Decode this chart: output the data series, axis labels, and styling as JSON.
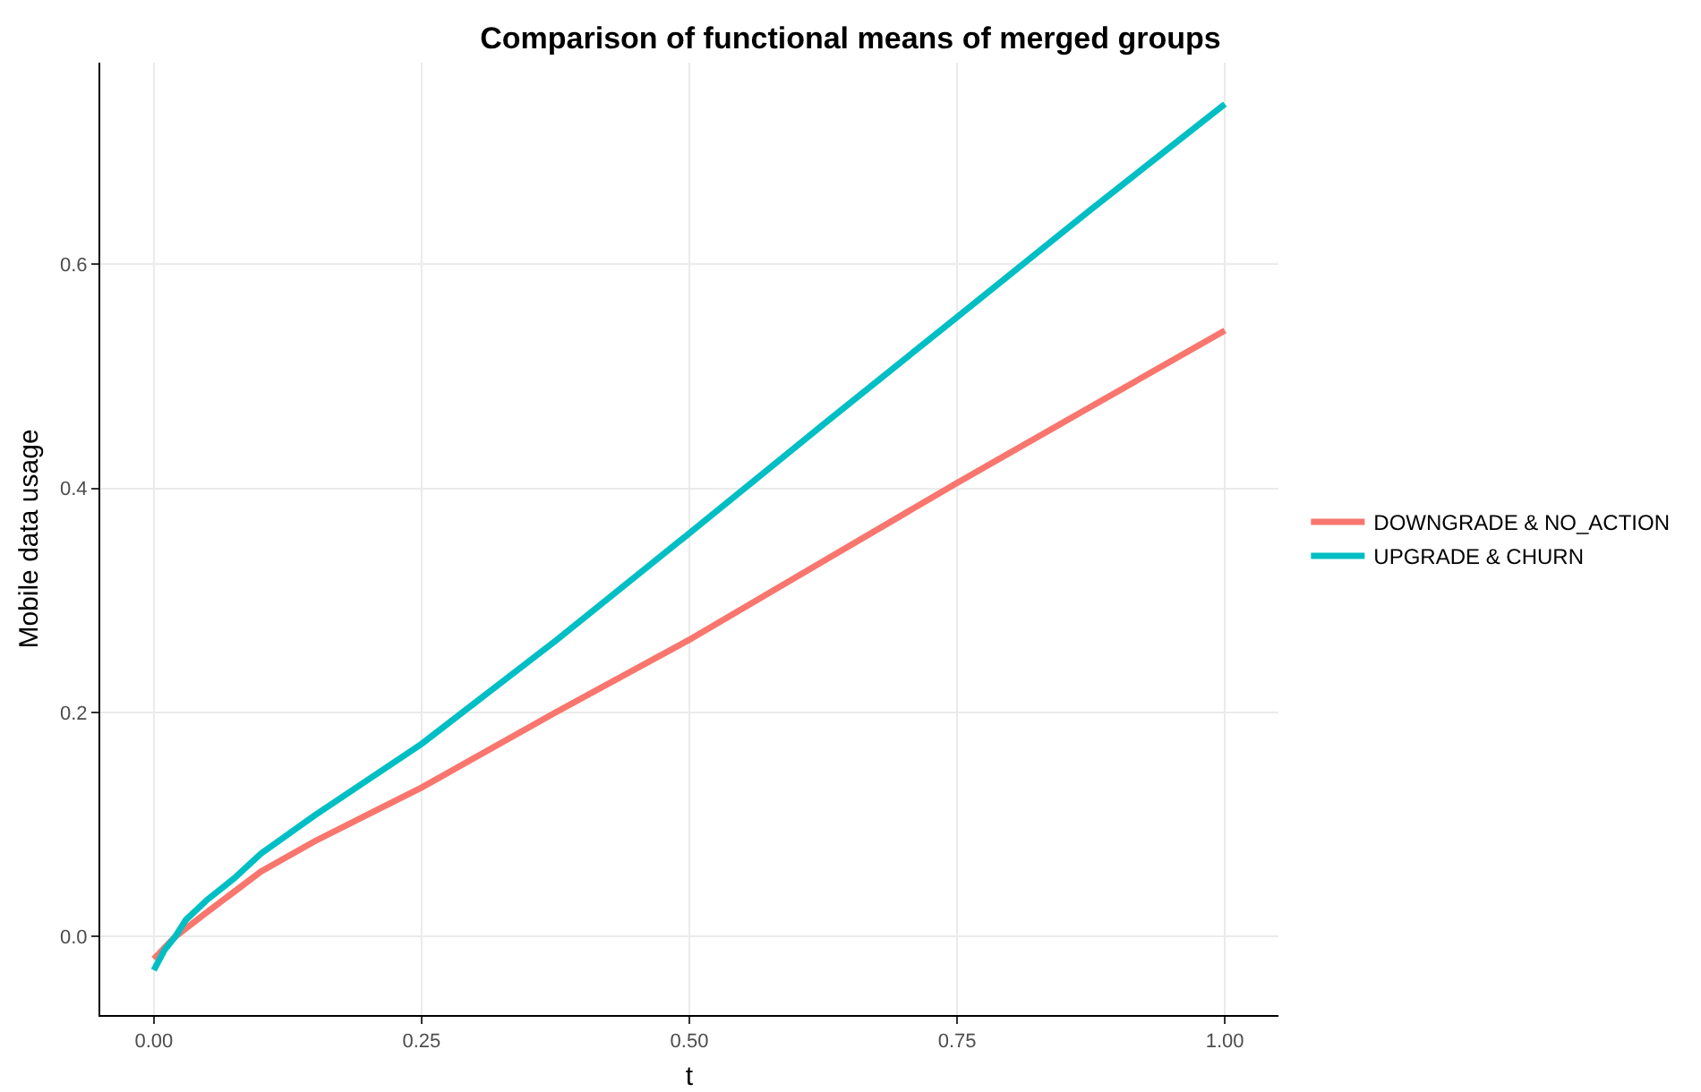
{
  "chart_data": {
    "type": "line",
    "title": "Comparison of functional means of merged groups",
    "xlabel": "t",
    "ylabel": "Mobile data usage",
    "xlim": [
      -0.05,
      1.05
    ],
    "xticks": [
      {
        "value": 0,
        "label": "0.00"
      },
      {
        "value": 0.25,
        "label": "0.25"
      },
      {
        "value": 0.5,
        "label": "0.50"
      },
      {
        "value": 0.75,
        "label": "0.75"
      },
      {
        "value": 1,
        "label": "1.00"
      }
    ],
    "ylim": [
      -0.07,
      0.78
    ],
    "yticks": [
      {
        "value": 0,
        "label": "0.0"
      },
      {
        "value": 0.2,
        "label": "0.2"
      },
      {
        "value": 0.4,
        "label": "0.4"
      },
      {
        "value": 0.6,
        "label": "0.6"
      }
    ],
    "grid": true,
    "legend": "right",
    "marker": "none",
    "line_style": "solid",
    "series": [
      {
        "name": "DOWNGRADE & NO_ACTION",
        "color": "#f8766d",
        "x": [
          0,
          0.02,
          0.05,
          0.1,
          0.15,
          0.2,
          0.25,
          0.375,
          0.5,
          0.625,
          0.75,
          0.875,
          1
        ],
        "values": [
          -0.02,
          0.0,
          0.022,
          0.058,
          0.085,
          0.109,
          0.133,
          0.2,
          0.265,
          0.335,
          0.405,
          0.473,
          0.541
        ]
      },
      {
        "name": "UPGRADE & CHURN",
        "color": "#00bfc4",
        "x": [
          0,
          0.01,
          0.02,
          0.03,
          0.05,
          0.075,
          0.1,
          0.15,
          0.2,
          0.25,
          0.375,
          0.5,
          0.625,
          0.75,
          0.875,
          1
        ],
        "values": [
          -0.03,
          -0.012,
          0.0,
          0.015,
          0.033,
          0.052,
          0.074,
          0.108,
          0.14,
          0.172,
          0.264,
          0.36,
          0.457,
          0.553,
          0.649,
          0.743
        ]
      }
    ]
  }
}
